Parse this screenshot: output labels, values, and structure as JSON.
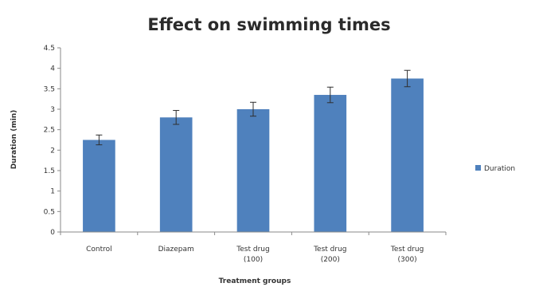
{
  "chart_data": {
    "type": "bar",
    "title": "Effect on swimming times",
    "xlabel": "Treatment groups",
    "ylabel": "Duration (min)",
    "categories": [
      "Control",
      "Diazepam",
      "Test drug (100)",
      "Test drug (200)",
      "Test drug (300)"
    ],
    "category_lines": [
      [
        "Control"
      ],
      [
        "Diazepam"
      ],
      [
        "Test drug",
        "(100)"
      ],
      [
        "Test drug",
        "(200)"
      ],
      [
        "Test drug",
        "(300)"
      ]
    ],
    "series": [
      {
        "name": "Duration",
        "color": "#4f81bd",
        "values": [
          2.25,
          2.8,
          3.0,
          3.35,
          3.75
        ],
        "errors": [
          0.12,
          0.17,
          0.17,
          0.19,
          0.2
        ]
      }
    ],
    "ylim": [
      0,
      4.5
    ],
    "yticks": [
      "0",
      "0.5",
      "1",
      "1.5",
      "2",
      "2.5",
      "3",
      "3.5",
      "4",
      "4.5"
    ],
    "grid": false,
    "legend_position": "right"
  }
}
